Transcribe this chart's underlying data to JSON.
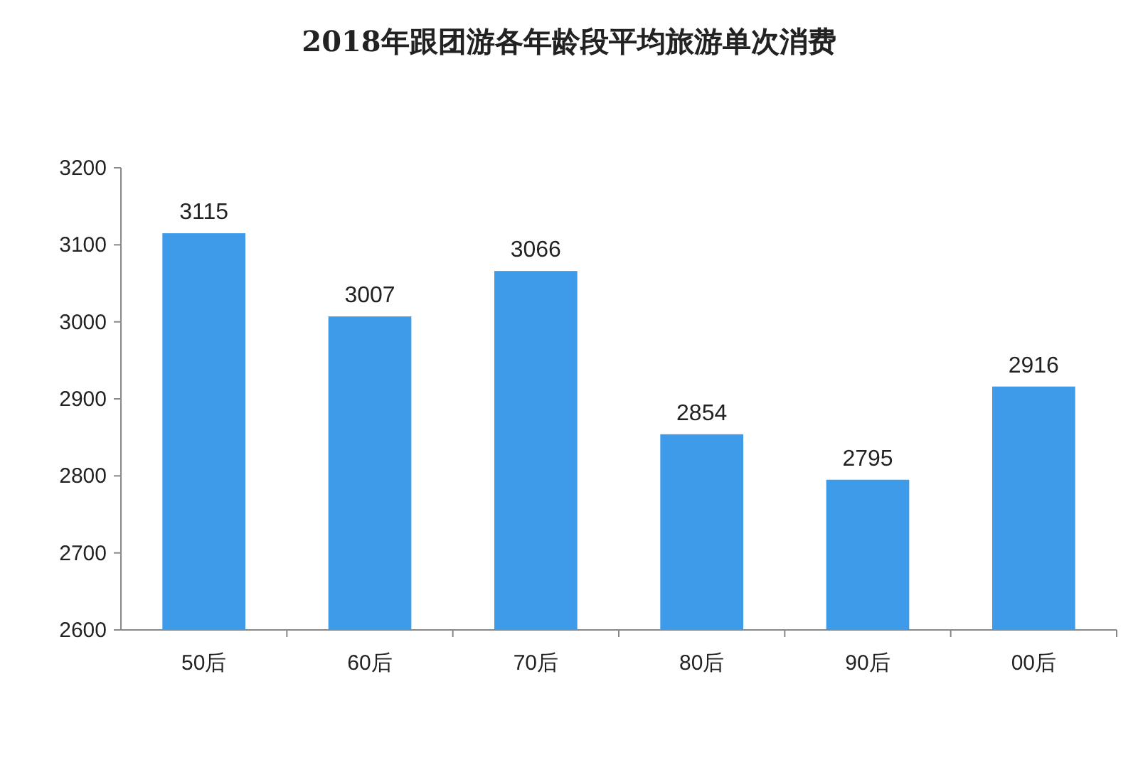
{
  "chart_data": {
    "type": "bar",
    "title": "2018年跟团游各年龄段平均旅游单次消费",
    "categories": [
      "50后",
      "60后",
      "70后",
      "80后",
      "90后",
      "00后"
    ],
    "values": [
      3115,
      3007,
      3066,
      2854,
      2795,
      2916
    ],
    "color": "#3d9be9",
    "ylim": [
      2600,
      3200
    ],
    "yticks": [
      2600,
      2700,
      2800,
      2900,
      3000,
      3100,
      3200
    ],
    "data_labels": true
  }
}
